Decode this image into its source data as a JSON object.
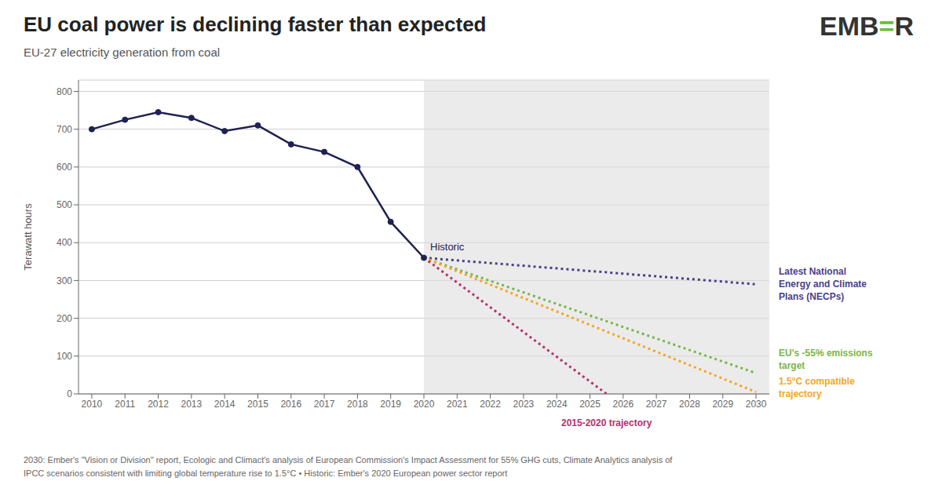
{
  "chart_data": {
    "type": "line",
    "title": "EU coal power is declining faster than expected",
    "subtitle": "EU-27 electricity generation from coal",
    "ylabel": "Terawatt hours",
    "footer": "2030: Ember's \"Vision or Division\" report, Ecologic and Climact's analysis of European Commission's Impact Assessment for 55% GHG cuts, Climate Analytics analysis of\nIPCC scenarios consistent with limiting global temperature rise to 1.5°C • Historic: Ember's 2020 European power sector report",
    "annotations": [
      {
        "text": "EMB",
        "color": "#333333"
      },
      {
        "text": "=",
        "color": "#6abf3a"
      },
      {
        "text": "R",
        "color": "#333333"
      }
    ],
    "xlim": [
      2009.6,
      2030.4
    ],
    "xticks": [
      2010,
      2011,
      2012,
      2013,
      2014,
      2015,
      2016,
      2017,
      2018,
      2019,
      2020,
      2021,
      2022,
      2023,
      2024,
      2025,
      2026,
      2027,
      2028,
      2029,
      2030
    ],
    "ylim": [
      0,
      830
    ],
    "yticks": [
      0,
      100,
      200,
      300,
      400,
      500,
      600,
      700,
      800
    ],
    "grid": true,
    "shaded_region": {
      "x": [
        2020,
        2030.5
      ],
      "color": "#dedede"
    },
    "series": [
      {
        "name": "Historic",
        "color": "#1e2151",
        "line_style": "solid",
        "marker": "circle",
        "x": [
          2010,
          2011,
          2012,
          2013,
          2014,
          2015,
          2016,
          2017,
          2018,
          2019,
          2020
        ],
        "values": [
          700,
          725,
          745,
          730,
          695,
          710,
          660,
          640,
          600,
          455,
          360
        ]
      },
      {
        "name": "Latest National\nEnergy and Climate\nPlans (NECPs)",
        "color": "#4b3f8c",
        "line_style": "dotted",
        "marker": "none",
        "x": [
          2020,
          2030
        ],
        "values": [
          360,
          290
        ]
      },
      {
        "name": "EU's -55% emissions\ntarget",
        "color": "#7ab648",
        "line_style": "dotted",
        "marker": "none",
        "x": [
          2020,
          2030
        ],
        "values": [
          360,
          55
        ]
      },
      {
        "name": "1.5°C compatible\ntrajectory",
        "color": "#f5a623",
        "line_style": "dotted",
        "marker": "none",
        "x": [
          2020,
          2030
        ],
        "values": [
          360,
          5
        ]
      },
      {
        "name": "2015-2020 trajectory",
        "color": "#b5316a",
        "line_style": "dotted",
        "marker": "none",
        "x": [
          2020,
          2025.5
        ],
        "values": [
          360,
          0
        ]
      }
    ]
  }
}
